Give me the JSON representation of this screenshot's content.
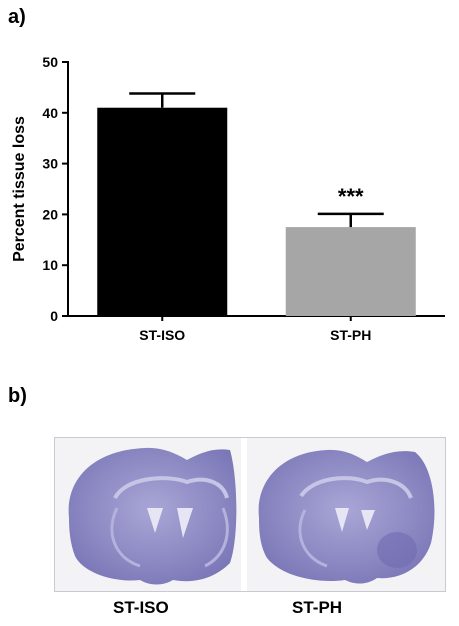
{
  "panel_a_label": "a)",
  "panel_b_label": "b)",
  "chart_data": {
    "type": "bar",
    "categories": [
      "ST-ISO",
      "ST-PH"
    ],
    "values": [
      41,
      17.5
    ],
    "errors": [
      2.8,
      2.6
    ],
    "ylabel": "Percent tissue loss",
    "xlabel": "",
    "ylim": [
      0,
      50
    ],
    "yticks": [
      0,
      10,
      20,
      30,
      40,
      50
    ],
    "annotations": [
      "",
      "***"
    ],
    "bar_colors": [
      "#000000",
      "#a6a6a6"
    ],
    "grid": false
  },
  "photos": {
    "captions": [
      "ST-ISO",
      "ST-PH"
    ],
    "stain_color": "#8c89c4"
  }
}
